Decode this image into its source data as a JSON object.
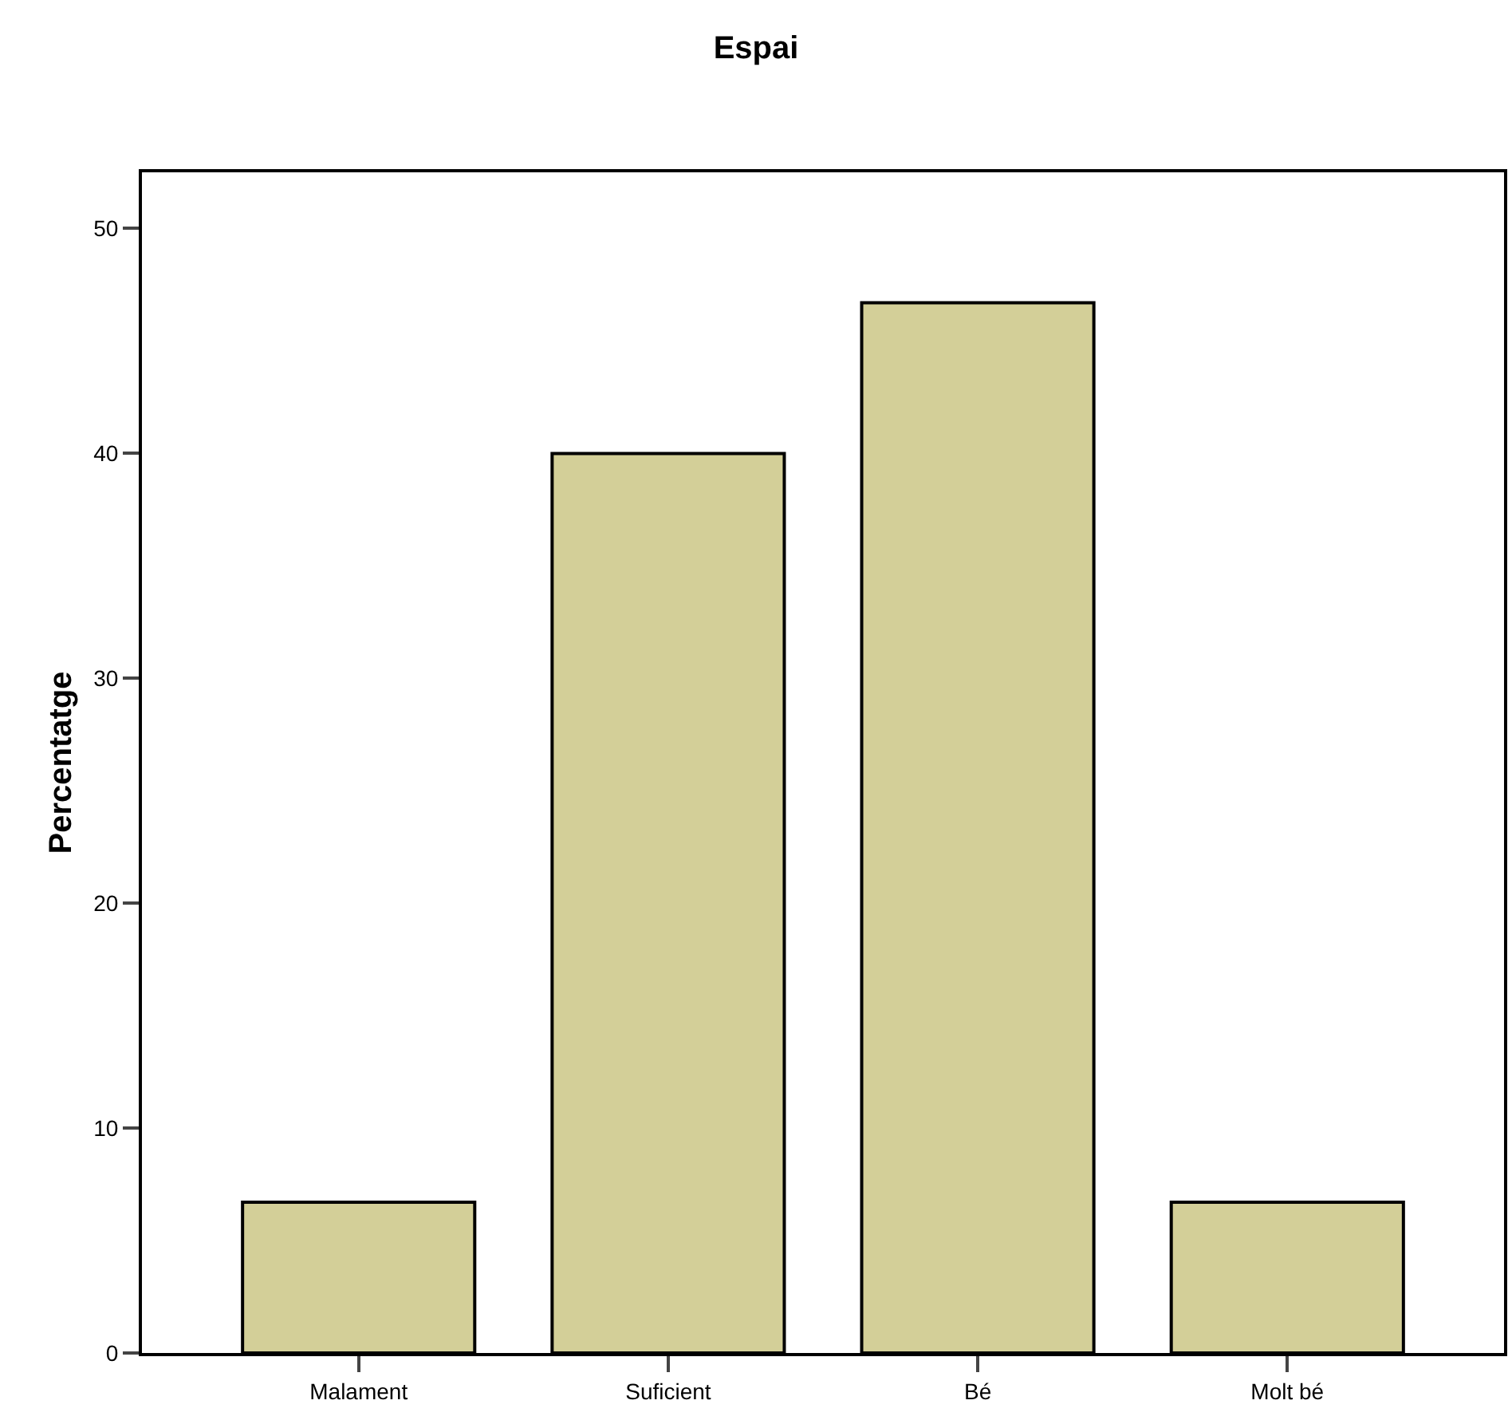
{
  "chart_data": {
    "type": "bar",
    "title": "Espai",
    "ylabel": "Percentatge",
    "categories": [
      "Malament",
      "Suficient",
      "Bé",
      "Molt bé"
    ],
    "values": [
      6.7,
      40.0,
      46.7,
      6.7
    ],
    "color": "#d3cf98",
    "ylim": [
      0,
      52.5
    ],
    "yticks": [
      0,
      10,
      20,
      30,
      40,
      50
    ]
  }
}
